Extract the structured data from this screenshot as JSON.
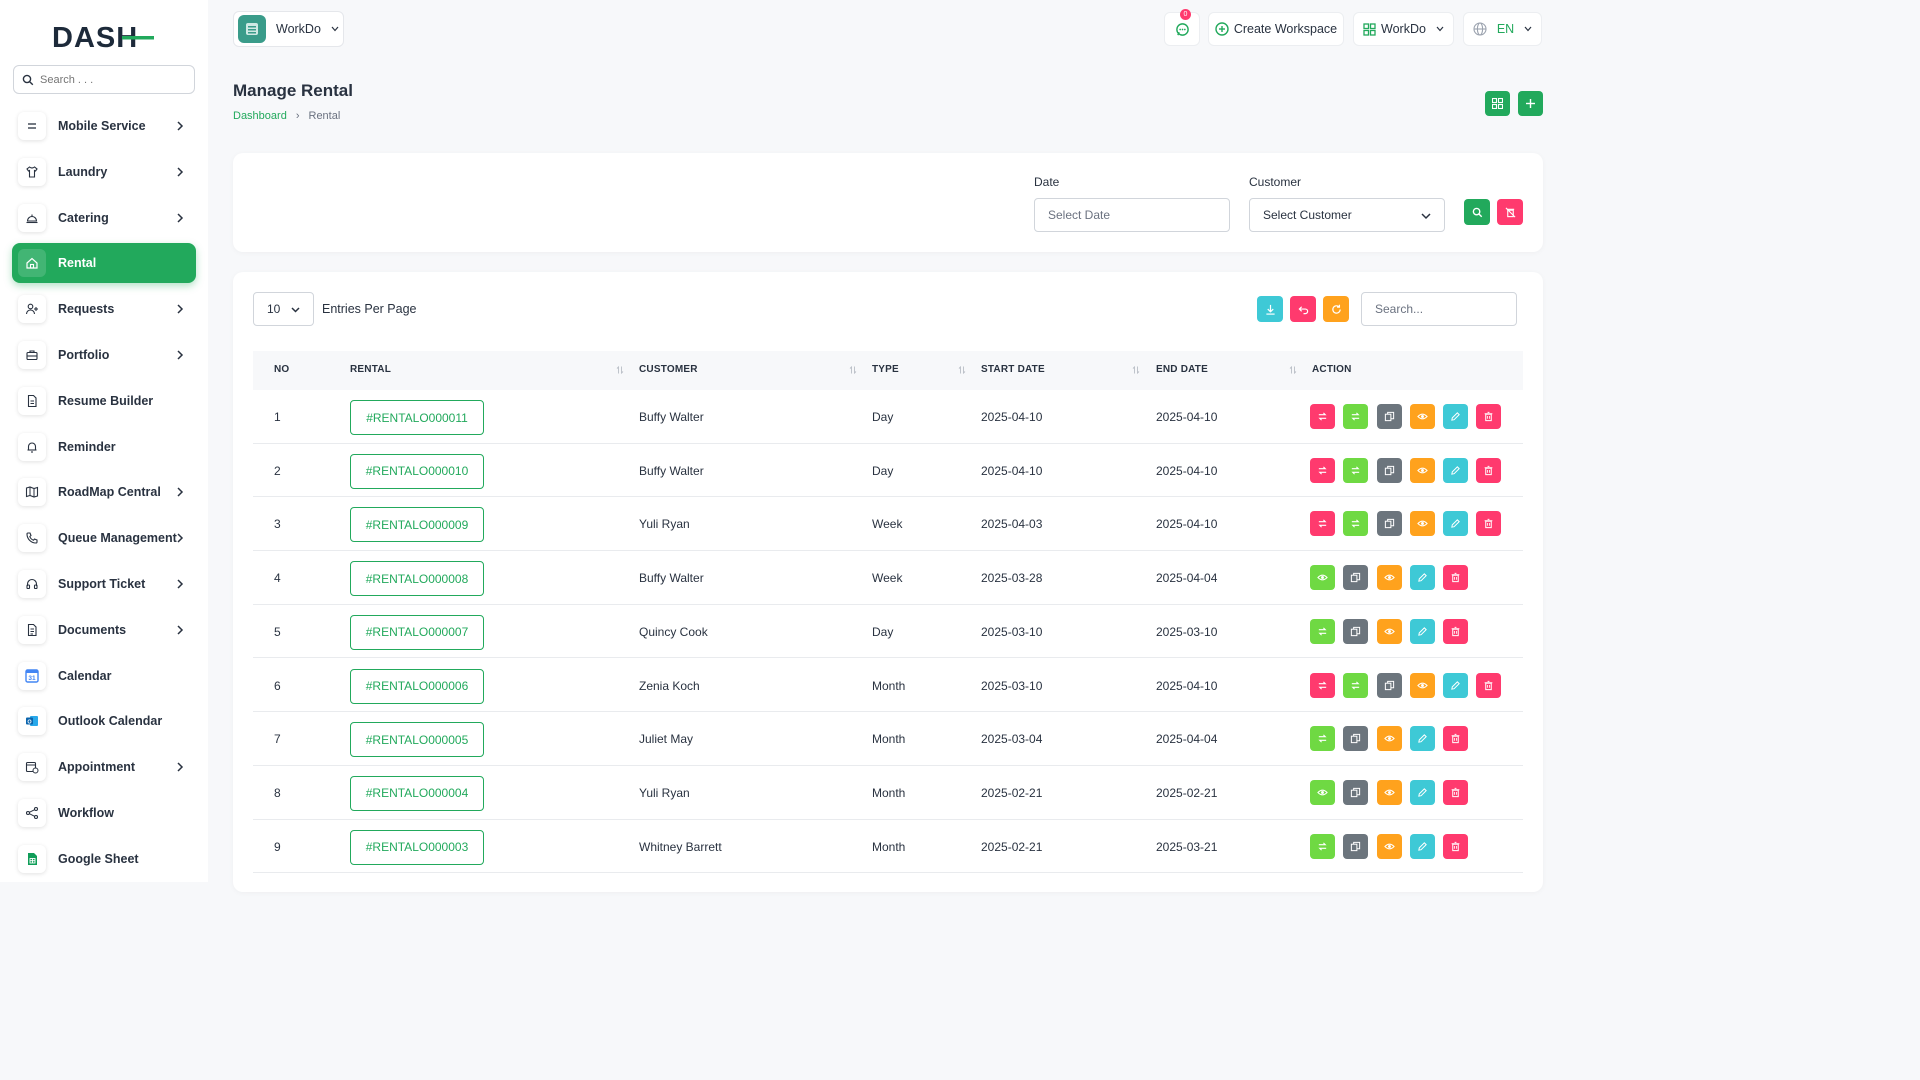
{
  "brand": {
    "logo_text": "DASH"
  },
  "sidebar": {
    "search_placeholder": "Search . . .",
    "items": [
      {
        "label": "Mobile Service",
        "icon": "mobile-service-icon",
        "chevron": true
      },
      {
        "label": "Laundry",
        "icon": "shirt-icon",
        "chevron": true
      },
      {
        "label": "Catering",
        "icon": "cloche-icon",
        "chevron": true
      },
      {
        "label": "Rental",
        "icon": "home-icon",
        "chevron": false,
        "active": true
      },
      {
        "label": "Requests",
        "icon": "user-plus-icon",
        "chevron": true
      },
      {
        "label": "Portfolio",
        "icon": "briefcase-icon",
        "chevron": true
      },
      {
        "label": "Resume Builder",
        "icon": "document-icon",
        "chevron": false
      },
      {
        "label": "Reminder",
        "icon": "bell-icon",
        "chevron": false
      },
      {
        "label": "RoadMap Central",
        "icon": "map-icon",
        "chevron": true
      },
      {
        "label": "Queue Management",
        "icon": "phone-icon",
        "chevron": true
      },
      {
        "label": "Support Ticket",
        "icon": "headset-icon",
        "chevron": true
      },
      {
        "label": "Documents",
        "icon": "file-icon",
        "chevron": true
      },
      {
        "label": "Calendar",
        "icon": "google-calendar-icon",
        "chevron": false
      },
      {
        "label": "Outlook Calendar",
        "icon": "outlook-icon",
        "chevron": false
      },
      {
        "label": "Appointment",
        "icon": "calendar-clock-icon",
        "chevron": true
      },
      {
        "label": "Workflow",
        "icon": "workflow-icon",
        "chevron": false
      },
      {
        "label": "Google Sheet",
        "icon": "google-sheet-icon",
        "chevron": false
      }
    ]
  },
  "topbar": {
    "workspace_name": "WorkDo",
    "notification_count": "0",
    "create_workspace_label": "Create Workspace",
    "workspace_menu_label": "WorkDo",
    "language": "EN"
  },
  "page": {
    "title": "Manage Rental",
    "breadcrumb": [
      "Dashboard",
      "Rental"
    ]
  },
  "filters": {
    "date_label": "Date",
    "date_placeholder": "Select Date",
    "customer_label": "Customer",
    "customer_placeholder": "Select Customer"
  },
  "table": {
    "entries_value": "10",
    "entries_label": "Entries Per Page",
    "search_placeholder": "Search...",
    "columns": [
      "NO",
      "RENTAL",
      "CUSTOMER",
      "TYPE",
      "START DATE",
      "END DATE",
      "ACTION"
    ],
    "rows": [
      {
        "no": "1",
        "rental": "#RENTALO000011",
        "customer": "Buffy Walter",
        "type": "Day",
        "start": "2025-04-10",
        "end": "2025-04-10",
        "actions": [
          "return",
          "renew",
          "copy",
          "view",
          "edit",
          "delete"
        ]
      },
      {
        "no": "2",
        "rental": "#RENTALO000010",
        "customer": "Buffy Walter",
        "type": "Day",
        "start": "2025-04-10",
        "end": "2025-04-10",
        "actions": [
          "return",
          "renew",
          "copy",
          "view",
          "edit",
          "delete"
        ]
      },
      {
        "no": "3",
        "rental": "#RENTALO000009",
        "customer": "Yuli Ryan",
        "type": "Week",
        "start": "2025-04-03",
        "end": "2025-04-10",
        "actions": [
          "return",
          "renew",
          "copy",
          "view",
          "edit",
          "delete"
        ]
      },
      {
        "no": "4",
        "rental": "#RENTALO000008",
        "customer": "Buffy Walter",
        "type": "Week",
        "start": "2025-03-28",
        "end": "2025-04-04",
        "actions": [
          "show",
          "copy",
          "view",
          "edit",
          "delete"
        ]
      },
      {
        "no": "5",
        "rental": "#RENTALO000007",
        "customer": "Quincy Cook",
        "type": "Day",
        "start": "2025-03-10",
        "end": "2025-03-10",
        "actions": [
          "renew",
          "copy",
          "view",
          "edit",
          "delete"
        ]
      },
      {
        "no": "6",
        "rental": "#RENTALO000006",
        "customer": "Zenia Koch",
        "type": "Month",
        "start": "2025-03-10",
        "end": "2025-04-10",
        "actions": [
          "return",
          "renew",
          "copy",
          "view",
          "edit",
          "delete"
        ]
      },
      {
        "no": "7",
        "rental": "#RENTALO000005",
        "customer": "Juliet May",
        "type": "Month",
        "start": "2025-03-04",
        "end": "2025-04-04",
        "actions": [
          "renew",
          "copy",
          "view",
          "edit",
          "delete"
        ]
      },
      {
        "no": "8",
        "rental": "#RENTALO000004",
        "customer": "Yuli Ryan",
        "type": "Month",
        "start": "2025-02-21",
        "end": "2025-02-21",
        "actions": [
          "show",
          "copy",
          "view",
          "edit",
          "delete"
        ]
      },
      {
        "no": "9",
        "rental": "#RENTALO000003",
        "customer": "Whitney Barrett",
        "type": "Month",
        "start": "2025-02-21",
        "end": "2025-03-21",
        "actions": [
          "renew",
          "copy",
          "view",
          "edit",
          "delete"
        ]
      }
    ]
  },
  "colors": {
    "primary": "#22a95c",
    "pink": "#ff3a6e",
    "light_green": "#6fd943",
    "gray": "#6c757d",
    "orange": "#ffa21d",
    "cyan": "#3ec9d6"
  }
}
